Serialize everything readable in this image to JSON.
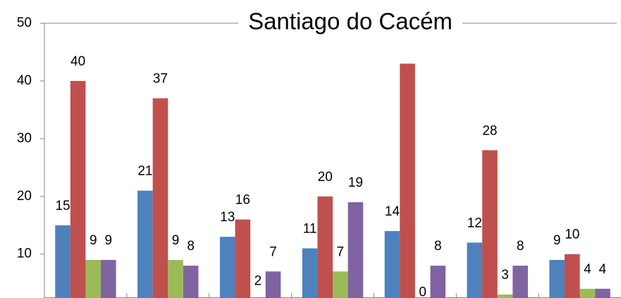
{
  "chart_data": {
    "type": "bar",
    "title": "Santiago do Cacém",
    "series": [
      {
        "color": "#4f81bd",
        "values": [
          15,
          21,
          13,
          11,
          14,
          12,
          9
        ]
      },
      {
        "color": "#c0504d",
        "values": [
          40,
          37,
          16,
          20,
          43,
          28,
          10
        ],
        "value_labels": [
          "40",
          "37",
          "16",
          "20",
          null,
          "28",
          "10"
        ]
      },
      {
        "color": "#9bbb59",
        "values": [
          9,
          9,
          2,
          7,
          0,
          3,
          4
        ]
      },
      {
        "color": "#8064a2",
        "values": [
          9,
          8,
          7,
          19,
          8,
          8,
          4
        ]
      }
    ],
    "ylim": [
      2.4,
      50
    ],
    "yticks": [
      10,
      20,
      30,
      40,
      50
    ],
    "grid": false
  }
}
